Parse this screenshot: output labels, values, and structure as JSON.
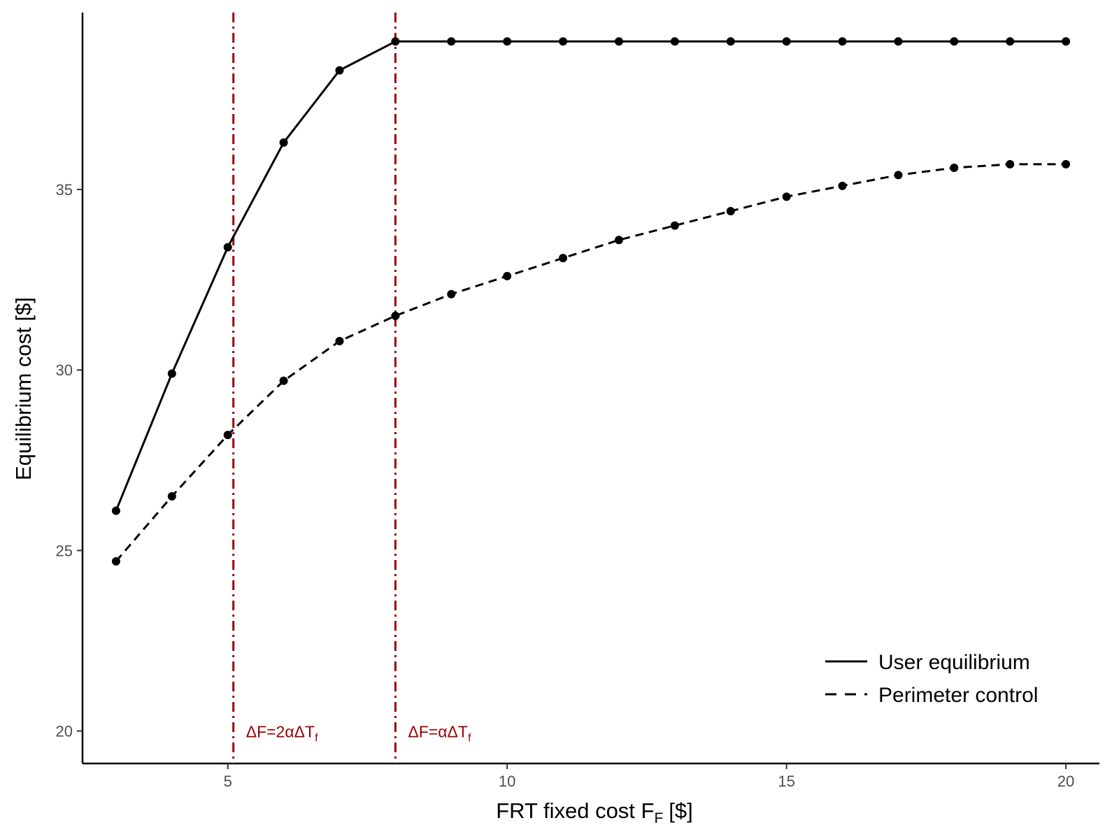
{
  "chart_data": {
    "type": "line",
    "xlabel": "FRT fixed cost F",
    "xlabel_sub": "F",
    "xlabel_unit": "[$]",
    "ylabel": "Equilibrium cost [$]",
    "xlim": [
      2.4,
      20.6
    ],
    "ylim": [
      19.1,
      39.9
    ],
    "x_ticks": [
      5,
      10,
      15,
      20
    ],
    "y_ticks": [
      20,
      25,
      30,
      35
    ],
    "grid": false,
    "legend_position": "bottom-right",
    "x": [
      3,
      4,
      5,
      6,
      7,
      8,
      9,
      10,
      11,
      12,
      13,
      14,
      15,
      16,
      17,
      18,
      19,
      20
    ],
    "series": [
      {
        "name": "User equilibrium",
        "line_style": "solid",
        "color": "#000000",
        "values": [
          26.1,
          29.9,
          33.4,
          36.3,
          38.3,
          39.1,
          39.1,
          39.1,
          39.1,
          39.1,
          39.1,
          39.1,
          39.1,
          39.1,
          39.1,
          39.1,
          39.1,
          39.1
        ]
      },
      {
        "name": "Perimeter control",
        "line_style": "dashed",
        "color": "#000000",
        "values": [
          24.7,
          26.5,
          28.2,
          29.7,
          30.8,
          31.5,
          32.1,
          32.6,
          33.1,
          33.6,
          34.0,
          34.4,
          34.8,
          35.1,
          35.4,
          35.6,
          35.7,
          35.7
        ]
      }
    ],
    "vlines": [
      {
        "x": 5.1,
        "label_main": "ΔF=2αΔT",
        "label_sub": "f",
        "color": "#990000"
      },
      {
        "x": 8.0,
        "label_main": "ΔF=αΔT",
        "label_sub": "f",
        "color": "#990000"
      }
    ]
  }
}
